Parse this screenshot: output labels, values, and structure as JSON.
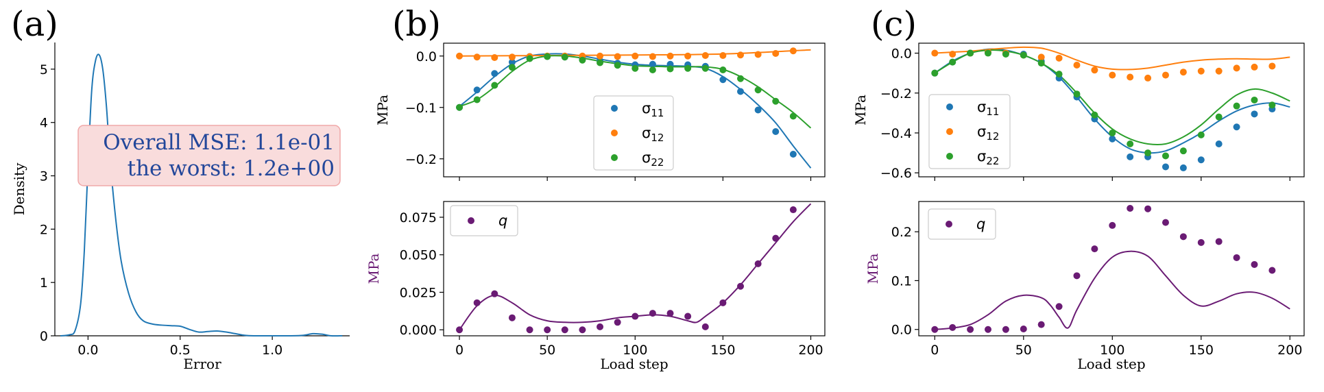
{
  "colors": {
    "blue": "#1f77b4",
    "orange": "#ff7f0e",
    "green": "#2ca02c",
    "purple": "#6a1b74",
    "mse_text": "#23479a",
    "mse_box_fill": "#f9dcdc",
    "mse_box_edge": "#f0a8a8"
  },
  "panels": {
    "a_label": "(a)",
    "b_label": "(b)",
    "c_label": "(c)"
  },
  "annotation": {
    "line1": "Overall MSE: 1.1e-01",
    "line2": "the worst: 1.2e+00"
  },
  "chart_data": [
    {
      "id": "a",
      "type": "line",
      "xlabel": "Error",
      "ylabel": "Density",
      "xlim": [
        -0.18,
        1.42
      ],
      "ylim": [
        0,
        5.5
      ],
      "xticks": [
        0.0,
        0.5,
        1.0
      ],
      "xtick_labels": [
        "0.0",
        "0.5",
        "1.0"
      ],
      "yticks": [
        0,
        1,
        2,
        3,
        4,
        5
      ],
      "ytick_labels": [
        "0",
        "1",
        "2",
        "3",
        "4",
        "5"
      ],
      "series": [
        {
          "color": "blue",
          "x": [
            -0.15,
            -0.1,
            -0.07,
            -0.04,
            -0.02,
            0.0,
            0.02,
            0.04,
            0.06,
            0.08,
            0.1,
            0.12,
            0.15,
            0.18,
            0.22,
            0.26,
            0.3,
            0.35,
            0.4,
            0.45,
            0.5,
            0.55,
            0.6,
            0.65,
            0.7,
            0.75,
            0.8,
            0.85,
            0.9,
            1.0,
            1.1,
            1.17,
            1.22,
            1.27,
            1.32,
            1.38
          ],
          "y": [
            0.0,
            0.02,
            0.1,
            0.6,
            1.6,
            3.2,
            4.6,
            5.15,
            5.27,
            5.0,
            4.3,
            3.3,
            2.2,
            1.4,
            0.8,
            0.45,
            0.28,
            0.22,
            0.2,
            0.19,
            0.18,
            0.12,
            0.07,
            0.08,
            0.09,
            0.07,
            0.04,
            0.01,
            0.0,
            0.0,
            0.0,
            0.01,
            0.04,
            0.03,
            0.0,
            0.0
          ]
        }
      ]
    },
    {
      "id": "b_top",
      "type": "scatter",
      "xlabel": "",
      "ylabel": "MPa",
      "xlim": [
        -9,
        208
      ],
      "ylim": [
        -0.235,
        0.025
      ],
      "yticks": [
        0.0,
        -0.1,
        -0.2
      ],
      "ytick_labels": [
        "0.0",
        "−0.1",
        "−0.2"
      ],
      "legend": {
        "placement": "center-right",
        "entries": [
          {
            "color": "blue",
            "label": "σ",
            "sub": "11"
          },
          {
            "color": "orange",
            "label": "σ",
            "sub": "12"
          },
          {
            "color": "green",
            "label": "σ",
            "sub": "22"
          }
        ]
      },
      "series": [
        {
          "color": "blue",
          "kind": "line",
          "x": [
            0,
            10,
            20,
            30,
            40,
            50,
            60,
            70,
            80,
            90,
            100,
            110,
            120,
            130,
            140,
            150,
            160,
            170,
            180,
            190,
            200
          ],
          "y": [
            -0.098,
            -0.07,
            -0.04,
            -0.015,
            0.0,
            0.004,
            0.004,
            0.0,
            -0.006,
            -0.012,
            -0.016,
            -0.018,
            -0.019,
            -0.02,
            -0.024,
            -0.04,
            -0.065,
            -0.095,
            -0.13,
            -0.175,
            -0.218
          ]
        },
        {
          "color": "orange",
          "kind": "line",
          "x": [
            0,
            50,
            100,
            150,
            200
          ],
          "y": [
            0.0,
            0.001,
            0.002,
            0.004,
            0.012
          ]
        },
        {
          "color": "green",
          "kind": "line",
          "x": [
            0,
            10,
            20,
            30,
            40,
            50,
            60,
            70,
            80,
            90,
            100,
            110,
            120,
            130,
            140,
            150,
            160,
            170,
            180,
            190,
            200
          ],
          "y": [
            -0.098,
            -0.085,
            -0.06,
            -0.03,
            -0.008,
            0.0,
            0.0,
            -0.004,
            -0.01,
            -0.015,
            -0.019,
            -0.02,
            -0.021,
            -0.021,
            -0.021,
            -0.026,
            -0.04,
            -0.06,
            -0.085,
            -0.11,
            -0.14
          ]
        },
        {
          "color": "blue",
          "kind": "points",
          "x": [
            0,
            10,
            20,
            30,
            40,
            50,
            60,
            70,
            80,
            90,
            100,
            110,
            120,
            130,
            140,
            150,
            160,
            170,
            180,
            190
          ],
          "y": [
            -0.1,
            -0.066,
            -0.034,
            -0.012,
            -0.001,
            -0.001,
            -0.002,
            -0.004,
            -0.009,
            -0.014,
            -0.017,
            -0.016,
            -0.016,
            -0.017,
            -0.02,
            -0.046,
            -0.069,
            -0.105,
            -0.147,
            -0.191
          ]
        },
        {
          "color": "orange",
          "kind": "points",
          "x": [
            0,
            10,
            20,
            30,
            40,
            50,
            60,
            70,
            80,
            90,
            100,
            110,
            120,
            130,
            140,
            150,
            160,
            170,
            180,
            190
          ],
          "y": [
            0.0,
            -0.002,
            -0.003,
            -0.002,
            -0.001,
            0.0,
            0.0,
            0.0,
            0.0,
            -0.001,
            0.0,
            -0.001,
            0.0,
            0.0,
            0.001,
            0.001,
            0.002,
            0.003,
            0.005,
            0.01
          ]
        },
        {
          "color": "green",
          "kind": "points",
          "x": [
            0,
            10,
            20,
            30,
            40,
            50,
            60,
            70,
            80,
            90,
            100,
            110,
            120,
            130,
            140,
            150,
            160,
            170,
            180,
            190
          ],
          "y": [
            -0.1,
            -0.085,
            -0.057,
            -0.022,
            -0.005,
            -0.001,
            -0.002,
            -0.008,
            -0.013,
            -0.018,
            -0.024,
            -0.027,
            -0.025,
            -0.024,
            -0.024,
            -0.027,
            -0.044,
            -0.066,
            -0.088,
            -0.117
          ]
        }
      ]
    },
    {
      "id": "b_bottom",
      "type": "scatter",
      "xlabel": "Load step",
      "ylabel": "MPa",
      "xlim": [
        -9,
        208
      ],
      "ylim": [
        -0.004,
        0.0855
      ],
      "xticks": [
        0,
        50,
        100,
        150,
        200
      ],
      "xtick_labels": [
        "0",
        "50",
        "100",
        "150",
        "200"
      ],
      "yticks": [
        0.0,
        0.025,
        0.05,
        0.075
      ],
      "ytick_labels": [
        "0.000",
        "0.025",
        "0.050",
        "0.075"
      ],
      "legend": {
        "placement": "upper-left",
        "entries": [
          {
            "color": "purple",
            "label": "q",
            "sub": ""
          }
        ]
      },
      "series": [
        {
          "color": "purple",
          "kind": "line",
          "x": [
            0,
            10,
            20,
            30,
            40,
            50,
            60,
            70,
            80,
            90,
            100,
            110,
            120,
            130,
            135,
            140,
            150,
            160,
            170,
            180,
            190,
            200
          ],
          "y": [
            0.0,
            0.016,
            0.023,
            0.018,
            0.01,
            0.006,
            0.005,
            0.005,
            0.006,
            0.008,
            0.009,
            0.01,
            0.009,
            0.006,
            0.005,
            0.009,
            0.018,
            0.03,
            0.044,
            0.058,
            0.072,
            0.084
          ]
        },
        {
          "color": "purple",
          "kind": "points",
          "x": [
            0,
            10,
            20,
            30,
            40,
            50,
            60,
            70,
            80,
            90,
            100,
            110,
            120,
            130,
            140,
            150,
            160,
            170,
            180,
            190
          ],
          "y": [
            0.0,
            0.018,
            0.024,
            0.008,
            0.0,
            0.0,
            0.0,
            0.0,
            0.002,
            0.005,
            0.009,
            0.011,
            0.011,
            0.009,
            0.002,
            0.018,
            0.029,
            0.044,
            0.061,
            0.08
          ]
        }
      ]
    },
    {
      "id": "c_top",
      "type": "scatter",
      "xlabel": "",
      "ylabel": "MPa",
      "xlim": [
        -9,
        208
      ],
      "ylim": [
        -0.62,
        0.05
      ],
      "yticks": [
        0.0,
        -0.2,
        -0.4,
        -0.6
      ],
      "ytick_labels": [
        "0.0",
        "−0.2",
        "−0.4",
        "−0.6"
      ],
      "legend": {
        "placement": "center-left",
        "entries": [
          {
            "color": "blue",
            "label": "σ",
            "sub": "11"
          },
          {
            "color": "orange",
            "label": "σ",
            "sub": "12"
          },
          {
            "color": "green",
            "label": "σ",
            "sub": "22"
          }
        ]
      },
      "series": [
        {
          "color": "blue",
          "kind": "line",
          "x": [
            0,
            10,
            20,
            30,
            40,
            50,
            60,
            70,
            80,
            90,
            100,
            110,
            120,
            130,
            140,
            150,
            160,
            170,
            180,
            190,
            200
          ],
          "y": [
            -0.1,
            -0.04,
            0.0,
            0.02,
            0.015,
            -0.01,
            -0.05,
            -0.12,
            -0.22,
            -0.33,
            -0.42,
            -0.48,
            -0.5,
            -0.49,
            -0.45,
            -0.4,
            -0.34,
            -0.29,
            -0.26,
            -0.25,
            -0.27
          ]
        },
        {
          "color": "orange",
          "kind": "line",
          "x": [
            0,
            10,
            20,
            30,
            40,
            50,
            60,
            70,
            80,
            90,
            100,
            110,
            120,
            130,
            140,
            150,
            160,
            170,
            180,
            190,
            200
          ],
          "y": [
            0.0,
            0.005,
            0.01,
            0.018,
            0.025,
            0.03,
            0.025,
            0.0,
            -0.035,
            -0.065,
            -0.08,
            -0.082,
            -0.075,
            -0.06,
            -0.045,
            -0.035,
            -0.03,
            -0.028,
            -0.03,
            -0.03,
            -0.02
          ]
        },
        {
          "color": "green",
          "kind": "line",
          "x": [
            0,
            10,
            20,
            30,
            40,
            50,
            60,
            70,
            80,
            90,
            100,
            110,
            120,
            130,
            140,
            150,
            160,
            170,
            180,
            190,
            200
          ],
          "y": [
            -0.1,
            -0.045,
            0.0,
            0.015,
            0.01,
            -0.01,
            -0.05,
            -0.11,
            -0.2,
            -0.3,
            -0.38,
            -0.43,
            -0.455,
            -0.455,
            -0.42,
            -0.36,
            -0.28,
            -0.21,
            -0.18,
            -0.2,
            -0.24
          ]
        },
        {
          "color": "blue",
          "kind": "points",
          "x": [
            0,
            10,
            20,
            30,
            40,
            50,
            60,
            70,
            80,
            90,
            100,
            110,
            120,
            130,
            140,
            150,
            160,
            170,
            180,
            190
          ],
          "y": [
            -0.1,
            -0.045,
            0.0,
            0.005,
            0.0,
            -0.005,
            -0.04,
            -0.125,
            -0.22,
            -0.33,
            -0.43,
            -0.52,
            -0.52,
            -0.57,
            -0.575,
            -0.535,
            -0.455,
            -0.37,
            -0.305,
            -0.28
          ]
        },
        {
          "color": "orange",
          "kind": "points",
          "x": [
            0,
            10,
            20,
            30,
            40,
            50,
            60,
            70,
            80,
            90,
            100,
            110,
            120,
            130,
            140,
            150,
            160,
            170,
            180,
            190
          ],
          "y": [
            0.0,
            -0.005,
            0.0,
            0.005,
            0.0,
            -0.01,
            -0.02,
            -0.025,
            -0.06,
            -0.085,
            -0.11,
            -0.12,
            -0.125,
            -0.11,
            -0.095,
            -0.09,
            -0.09,
            -0.075,
            -0.07,
            -0.065
          ]
        },
        {
          "color": "green",
          "kind": "points",
          "x": [
            0,
            10,
            20,
            30,
            40,
            50,
            60,
            70,
            80,
            90,
            100,
            110,
            120,
            130,
            140,
            150,
            160,
            170,
            180,
            190
          ],
          "y": [
            -0.1,
            -0.045,
            0.0,
            0.0,
            -0.005,
            -0.01,
            -0.05,
            -0.105,
            -0.205,
            -0.31,
            -0.4,
            -0.455,
            -0.5,
            -0.515,
            -0.49,
            -0.41,
            -0.32,
            -0.265,
            -0.235,
            -0.26
          ]
        }
      ]
    },
    {
      "id": "c_bottom",
      "type": "scatter",
      "xlabel": "Load step",
      "ylabel": "MPa",
      "xlim": [
        -9,
        208
      ],
      "ylim": [
        -0.013,
        0.262
      ],
      "xticks": [
        0,
        50,
        100,
        150,
        200
      ],
      "xtick_labels": [
        "0",
        "50",
        "100",
        "150",
        "200"
      ],
      "yticks": [
        0.0,
        0.1,
        0.2
      ],
      "ytick_labels": [
        "0.0",
        "0.1",
        "0.2"
      ],
      "legend": {
        "placement": "upper-left",
        "entries": [
          {
            "color": "purple",
            "label": "q",
            "sub": ""
          }
        ]
      },
      "series": [
        {
          "color": "purple",
          "kind": "line",
          "x": [
            0,
            10,
            20,
            30,
            40,
            50,
            60,
            65,
            70,
            75,
            80,
            90,
            100,
            110,
            120,
            130,
            140,
            150,
            160,
            170,
            180,
            190,
            200
          ],
          "y": [
            0.0,
            0.003,
            0.01,
            0.03,
            0.058,
            0.07,
            0.065,
            0.05,
            0.025,
            0.003,
            0.04,
            0.105,
            0.148,
            0.16,
            0.15,
            0.11,
            0.07,
            0.048,
            0.058,
            0.073,
            0.076,
            0.064,
            0.042
          ]
        },
        {
          "color": "purple",
          "kind": "points",
          "x": [
            0,
            10,
            20,
            30,
            40,
            50,
            60,
            70,
            80,
            90,
            100,
            110,
            120,
            130,
            140,
            150,
            160,
            170,
            180,
            190
          ],
          "y": [
            0.0,
            0.004,
            0.0,
            0.0,
            0.0,
            0.001,
            0.01,
            0.047,
            0.11,
            0.165,
            0.213,
            0.248,
            0.247,
            0.219,
            0.19,
            0.178,
            0.18,
            0.147,
            0.133,
            0.121
          ]
        }
      ]
    }
  ]
}
